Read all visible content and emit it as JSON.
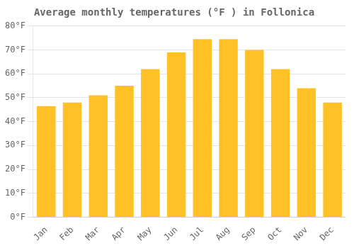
{
  "chart_data": {
    "type": "bar",
    "title": "Average monthly temperatures (°F ) in Follonica",
    "categories": [
      "Jan",
      "Feb",
      "Mar",
      "Apr",
      "May",
      "Jun",
      "Jul",
      "Aug",
      "Sep",
      "Oct",
      "Nov",
      "Dec"
    ],
    "values": [
      46.5,
      48.0,
      51.0,
      55.0,
      62.0,
      69.0,
      74.5,
      74.5,
      70.0,
      62.0,
      54.0,
      48.0
    ],
    "color": "#FFC125",
    "ylim": [
      0,
      80
    ],
    "yticks": [
      {
        "value": 0,
        "label": "0°F"
      },
      {
        "value": 10,
        "label": "10°F"
      },
      {
        "value": 20,
        "label": "20°F"
      },
      {
        "value": 30,
        "label": "30°F"
      },
      {
        "value": 40,
        "label": "40°F"
      },
      {
        "value": 50,
        "label": "50°F"
      },
      {
        "value": 60,
        "label": "60°F"
      },
      {
        "value": 70,
        "label": "70°F"
      },
      {
        "value": 80,
        "label": "80°F"
      }
    ],
    "grid": true
  }
}
